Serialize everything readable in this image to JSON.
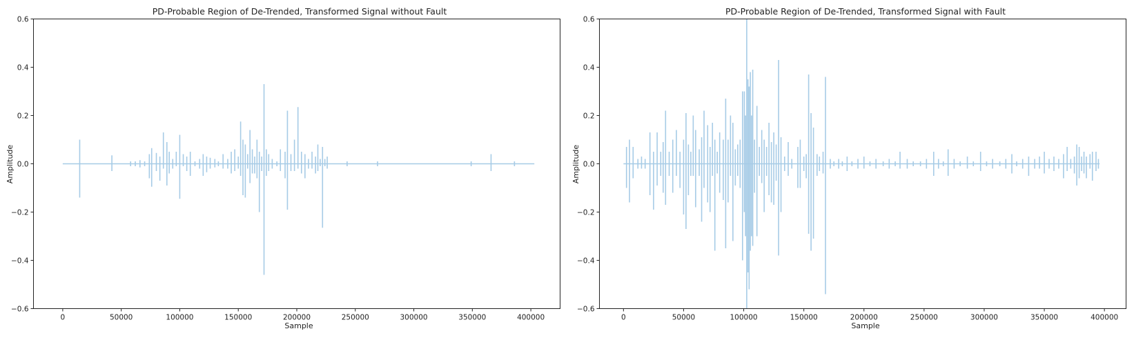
{
  "chart_data": [
    {
      "type": "line",
      "title": "PD-Probable Region of De-Trended, Transformed Signal without Fault",
      "xlabel": "Sample",
      "ylabel": "Amplitude",
      "xlim": [
        -25000,
        425000
      ],
      "ylim": [
        -0.6,
        0.6
      ],
      "xticks": [
        0,
        50000,
        100000,
        150000,
        200000,
        250000,
        300000,
        350000,
        400000
      ],
      "xtick_labels": [
        "0",
        "50000",
        "100000",
        "150000",
        "200000",
        "250000",
        "300000",
        "350000",
        "400000"
      ],
      "yticks": [
        -0.6,
        -0.4,
        -0.2,
        0.0,
        0.2,
        0.4,
        0.6
      ],
      "ytick_labels": [
        "−0.6",
        "−0.4",
        "−0.2",
        "0.0",
        "0.2",
        "0.4",
        "0.6"
      ],
      "grid": false,
      "color": "#a6cbe6",
      "x_extent": [
        0,
        403000
      ],
      "spikes": [
        [
          14500,
          0.1,
          -0.14
        ],
        [
          42000,
          0.035,
          -0.03
        ],
        [
          58000,
          0.01,
          -0.01
        ],
        [
          62000,
          0.01,
          -0.01
        ],
        [
          66000,
          0.015,
          -0.015
        ],
        [
          70000,
          0.01,
          -0.01
        ],
        [
          74000,
          0.04,
          -0.06
        ],
        [
          76000,
          0.065,
          -0.095
        ],
        [
          80000,
          0.045,
          -0.03
        ],
        [
          83000,
          0.03,
          -0.07
        ],
        [
          86000,
          0.13,
          -0.02
        ],
        [
          89000,
          0.09,
          -0.09
        ],
        [
          91000,
          0.05,
          -0.04
        ],
        [
          94000,
          0.02,
          -0.02
        ],
        [
          97000,
          0.05,
          -0.01
        ],
        [
          100000,
          0.12,
          -0.145
        ],
        [
          103000,
          0.04,
          -0.01
        ],
        [
          106000,
          0.03,
          -0.03
        ],
        [
          109000,
          0.05,
          -0.05
        ],
        [
          113000,
          0.01,
          -0.01
        ],
        [
          117000,
          0.02,
          -0.02
        ],
        [
          120000,
          0.04,
          -0.05
        ],
        [
          123000,
          0.03,
          -0.035
        ],
        [
          126000,
          0.025,
          -0.02
        ],
        [
          130000,
          0.02,
          -0.015
        ],
        [
          133000,
          0.01,
          -0.01
        ],
        [
          137000,
          0.04,
          -0.02
        ],
        [
          141000,
          0.02,
          -0.02
        ],
        [
          144000,
          0.05,
          -0.04
        ],
        [
          147000,
          0.06,
          -0.03
        ],
        [
          150000,
          0.03,
          -0.02
        ],
        [
          152000,
          0.175,
          -0.05
        ],
        [
          154000,
          0.1,
          -0.13
        ],
        [
          156000,
          0.08,
          -0.14
        ],
        [
          158000,
          0.04,
          -0.02
        ],
        [
          160000,
          0.14,
          -0.08
        ],
        [
          162000,
          0.06,
          -0.04
        ],
        [
          164000,
          0.03,
          -0.04
        ],
        [
          166000,
          0.1,
          -0.06
        ],
        [
          168000,
          0.05,
          -0.2
        ],
        [
          170000,
          0.03,
          -0.03
        ],
        [
          172000,
          0.33,
          -0.46
        ],
        [
          174000,
          0.06,
          -0.05
        ],
        [
          176000,
          0.04,
          -0.03
        ],
        [
          179000,
          0.02,
          -0.02
        ],
        [
          183000,
          0.01,
          -0.01
        ],
        [
          186000,
          0.06,
          -0.03
        ],
        [
          190000,
          0.05,
          -0.06
        ],
        [
          192000,
          0.22,
          -0.19
        ],
        [
          195000,
          0.04,
          -0.03
        ],
        [
          198000,
          0.1,
          -0.03
        ],
        [
          201000,
          0.235,
          -0.02
        ],
        [
          204000,
          0.05,
          -0.04
        ],
        [
          207000,
          0.04,
          -0.06
        ],
        [
          210000,
          0.02,
          -0.02
        ],
        [
          213000,
          0.05,
          -0.02
        ],
        [
          216000,
          0.03,
          -0.04
        ],
        [
          218000,
          0.08,
          -0.03
        ],
        [
          220000,
          0.02,
          -0.01
        ],
        [
          222000,
          0.07,
          -0.265
        ],
        [
          224000,
          0.02,
          -0.01
        ],
        [
          226000,
          0.03,
          -0.02
        ],
        [
          243000,
          0.01,
          -0.01
        ],
        [
          269000,
          0.01,
          -0.01
        ],
        [
          349000,
          0.01,
          -0.01
        ],
        [
          366000,
          0.04,
          -0.03
        ],
        [
          386000,
          0.01,
          -0.01
        ]
      ]
    },
    {
      "type": "line",
      "title": "PD-Probable Region of De-Trended, Transformed Signal with Fault",
      "xlabel": "Sample",
      "ylabel": "Amplitude",
      "xlim": [
        -20000,
        418000
      ],
      "ylim": [
        -0.6,
        0.6
      ],
      "xticks": [
        0,
        50000,
        100000,
        150000,
        200000,
        250000,
        300000,
        350000,
        400000
      ],
      "xtick_labels": [
        "0",
        "50000",
        "100000",
        "150000",
        "200000",
        "250000",
        "300000",
        "350000",
        "400000"
      ],
      "yticks": [
        -0.6,
        -0.4,
        -0.2,
        0.0,
        0.2,
        0.4,
        0.6
      ],
      "ytick_labels": [
        "−0.6",
        "−0.4",
        "−0.2",
        "0.0",
        "0.2",
        "0.4",
        "0.6"
      ],
      "grid": false,
      "color": "#a6cbe6",
      "x_extent": [
        0,
        396000
      ],
      "spikes": [
        [
          2500,
          0.07,
          -0.1
        ],
        [
          5000,
          0.1,
          -0.16
        ],
        [
          8000,
          0.07,
          -0.06
        ],
        [
          12000,
          0.02,
          -0.02
        ],
        [
          15000,
          0.03,
          -0.02
        ],
        [
          18000,
          0.02,
          -0.02
        ],
        [
          22000,
          0.13,
          -0.13
        ],
        [
          25000,
          0.05,
          -0.19
        ],
        [
          28000,
          0.13,
          -0.09
        ],
        [
          31000,
          0.05,
          -0.05
        ],
        [
          33000,
          0.09,
          -0.12
        ],
        [
          35000,
          0.22,
          -0.17
        ],
        [
          38000,
          0.05,
          -0.05
        ],
        [
          41000,
          0.1,
          -0.12
        ],
        [
          44000,
          0.14,
          -0.05
        ],
        [
          47000,
          0.05,
          -0.1
        ],
        [
          50000,
          0.1,
          -0.21
        ],
        [
          52000,
          0.21,
          -0.27
        ],
        [
          54000,
          0.08,
          -0.13
        ],
        [
          56000,
          0.05,
          -0.05
        ],
        [
          58000,
          0.2,
          -0.05
        ],
        [
          60000,
          0.14,
          -0.18
        ],
        [
          63000,
          0.06,
          -0.05
        ],
        [
          65000,
          0.11,
          -0.24
        ],
        [
          67000,
          0.22,
          -0.1
        ],
        [
          70000,
          0.16,
          -0.16
        ],
        [
          72000,
          0.07,
          -0.2
        ],
        [
          74000,
          0.17,
          -0.05
        ],
        [
          76000,
          0.1,
          -0.36
        ],
        [
          78000,
          0.05,
          -0.04
        ],
        [
          80000,
          0.13,
          -0.12
        ],
        [
          83000,
          0.1,
          -0.15
        ],
        [
          85000,
          0.27,
          -0.35
        ],
        [
          87000,
          0.1,
          -0.16
        ],
        [
          89000,
          0.2,
          -0.05
        ],
        [
          91000,
          0.17,
          -0.32
        ],
        [
          93000,
          0.06,
          -0.09
        ],
        [
          95000,
          0.08,
          -0.05
        ],
        [
          97000,
          0.1,
          -0.1
        ],
        [
          99000,
          0.3,
          -0.4
        ],
        [
          100500,
          0.3,
          -0.2
        ],
        [
          101500,
          0.2,
          -0.3
        ],
        [
          102500,
          0.6,
          -0.6
        ],
        [
          103500,
          0.35,
          -0.45
        ],
        [
          104500,
          0.32,
          -0.52
        ],
        [
          105500,
          0.38,
          -0.36
        ],
        [
          106500,
          0.2,
          -0.3
        ],
        [
          107500,
          0.39,
          -0.34
        ],
        [
          109000,
          0.1,
          -0.12
        ],
        [
          111000,
          0.24,
          -0.3
        ],
        [
          113000,
          0.07,
          -0.05
        ],
        [
          115000,
          0.14,
          -0.08
        ],
        [
          117000,
          0.1,
          -0.2
        ],
        [
          119000,
          0.07,
          -0.05
        ],
        [
          121000,
          0.17,
          -0.13
        ],
        [
          123000,
          0.09,
          -0.16
        ],
        [
          125000,
          0.13,
          -0.17
        ],
        [
          127000,
          0.08,
          -0.07
        ],
        [
          129000,
          0.43,
          -0.38
        ],
        [
          131000,
          0.11,
          -0.2
        ],
        [
          134000,
          0.03,
          -0.03
        ],
        [
          137000,
          0.09,
          -0.05
        ],
        [
          140000,
          0.02,
          -0.02
        ],
        [
          145000,
          0.07,
          -0.1
        ],
        [
          147000,
          0.1,
          -0.1
        ],
        [
          150000,
          0.03,
          -0.03
        ],
        [
          152000,
          0.04,
          -0.06
        ],
        [
          154000,
          0.37,
          -0.29
        ],
        [
          156000,
          0.21,
          -0.36
        ],
        [
          158000,
          0.15,
          -0.31
        ],
        [
          161000,
          0.04,
          -0.05
        ],
        [
          163000,
          0.03,
          -0.03
        ],
        [
          166000,
          0.05,
          -0.04
        ],
        [
          168000,
          0.36,
          -0.54
        ],
        [
          172000,
          0.02,
          -0.02
        ],
        [
          175000,
          0.01,
          -0.01
        ],
        [
          179000,
          0.02,
          -0.02
        ],
        [
          182000,
          0.01,
          -0.01
        ],
        [
          186000,
          0.03,
          -0.03
        ],
        [
          190000,
          0.01,
          -0.01
        ],
        [
          195000,
          0.02,
          -0.02
        ],
        [
          200000,
          0.03,
          -0.02
        ],
        [
          205000,
          0.01,
          -0.01
        ],
        [
          210000,
          0.02,
          -0.02
        ],
        [
          216000,
          0.01,
          -0.01
        ],
        [
          221000,
          0.02,
          -0.02
        ],
        [
          226000,
          0.01,
          -0.01
        ],
        [
          230000,
          0.05,
          -0.02
        ],
        [
          236000,
          0.02,
          -0.02
        ],
        [
          241000,
          0.01,
          -0.01
        ],
        [
          247000,
          0.01,
          -0.01
        ],
        [
          252000,
          0.02,
          -0.02
        ],
        [
          258000,
          0.05,
          -0.05
        ],
        [
          262000,
          0.02,
          -0.02
        ],
        [
          266000,
          0.01,
          -0.01
        ],
        [
          270000,
          0.06,
          -0.05
        ],
        [
          275000,
          0.02,
          -0.02
        ],
        [
          280000,
          0.01,
          -0.01
        ],
        [
          286000,
          0.03,
          -0.02
        ],
        [
          291000,
          0.01,
          -0.01
        ],
        [
          297000,
          0.05,
          -0.03
        ],
        [
          302000,
          0.01,
          -0.01
        ],
        [
          307000,
          0.02,
          -0.02
        ],
        [
          313000,
          0.01,
          -0.01
        ],
        [
          318000,
          0.02,
          -0.02
        ],
        [
          323000,
          0.04,
          -0.04
        ],
        [
          327000,
          0.01,
          -0.01
        ],
        [
          332000,
          0.02,
          -0.02
        ],
        [
          337000,
          0.03,
          -0.05
        ],
        [
          342000,
          0.02,
          -0.02
        ],
        [
          346000,
          0.03,
          -0.02
        ],
        [
          350000,
          0.05,
          -0.04
        ],
        [
          354000,
          0.02,
          -0.02
        ],
        [
          358000,
          0.03,
          -0.03
        ],
        [
          362000,
          0.02,
          -0.02
        ],
        [
          366000,
          0.04,
          -0.06
        ],
        [
          369000,
          0.07,
          -0.03
        ],
        [
          372000,
          0.02,
          -0.02
        ],
        [
          375000,
          0.03,
          -0.04
        ],
        [
          377000,
          0.08,
          -0.09
        ],
        [
          379000,
          0.07,
          -0.06
        ],
        [
          381000,
          0.03,
          -0.03
        ],
        [
          383000,
          0.05,
          -0.04
        ],
        [
          385000,
          0.03,
          -0.06
        ],
        [
          388000,
          0.04,
          -0.02
        ],
        [
          390000,
          0.05,
          -0.07
        ],
        [
          393000,
          0.05,
          -0.03
        ],
        [
          395000,
          0.02,
          -0.02
        ]
      ]
    }
  ]
}
